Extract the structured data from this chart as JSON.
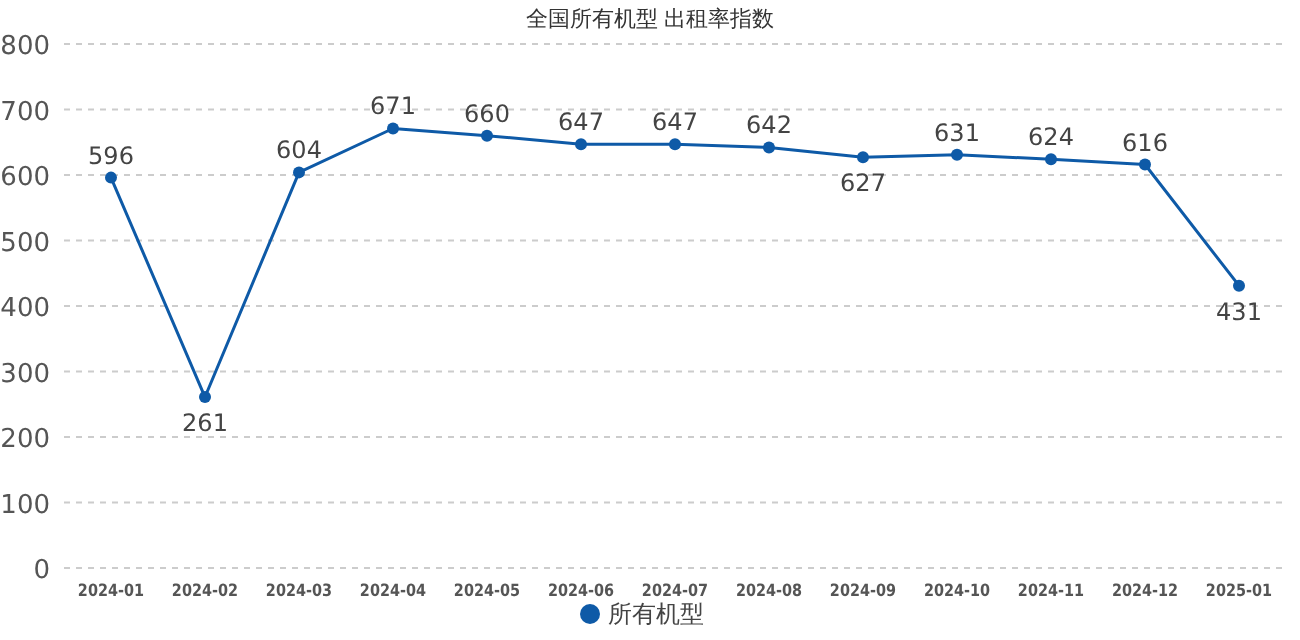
{
  "chart_data": {
    "type": "line",
    "title": "全国所有机型  出租率指数",
    "categories": [
      "2024-01",
      "2024-02",
      "2024-03",
      "2024-04",
      "2024-05",
      "2024-06",
      "2024-07",
      "2024-08",
      "2024-09",
      "2024-10",
      "2024-11",
      "2024-12",
      "2025-01"
    ],
    "series": [
      {
        "name": "所有机型",
        "color": "#0e5aa7",
        "values": [
          596,
          261,
          604,
          671,
          660,
          647,
          647,
          642,
          627,
          631,
          624,
          616,
          431
        ]
      }
    ],
    "ylim": [
      0,
      800
    ],
    "yticks": [
      0,
      100,
      200,
      300,
      400,
      500,
      600,
      700,
      800
    ],
    "grid": "y",
    "legend": "bottom",
    "marker": "circle",
    "line_style": "solid",
    "data_labels": true
  }
}
